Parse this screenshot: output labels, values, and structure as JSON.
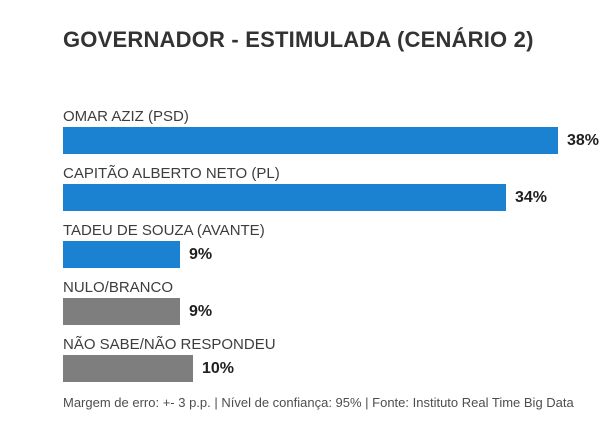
{
  "title": "GOVERNADOR - ESTIMULADA (CENÁRIO 2)",
  "footer": "Margem de erro: +- 3 p.p. | Nível de confiança: 95% | Fonte: Instituto Real Time Big Data",
  "colors": {
    "candidate_bar": "#1b82d2",
    "neutral_bar": "#7e7e7e",
    "title_text": "#333333",
    "label_text": "#3d3d3d",
    "value_text": "#1f1f1f",
    "footnote_text": "#4e4e4e",
    "background": "#ffffff"
  },
  "chart_data": {
    "type": "bar",
    "orientation": "horizontal",
    "title": "GOVERNADOR - ESTIMULADA (CENÁRIO 2)",
    "categories": [
      "OMAR AZIZ (PSD)",
      "CAPITÃO ALBERTO NETO (PL)",
      "TADEU DE SOUZA (AVANTE)",
      "NULO/BRANCO",
      "NÃO SABE/NÃO RESPONDEU"
    ],
    "values": [
      38,
      34,
      9,
      9,
      10
    ],
    "value_labels": [
      "38%",
      "34%",
      "9%",
      "9%",
      "10%"
    ],
    "bar_color_keys": [
      "candidate_bar",
      "candidate_bar",
      "candidate_bar",
      "neutral_bar",
      "neutral_bar"
    ],
    "xlim": [
      0,
      38
    ],
    "unit": "%",
    "grid": false,
    "legend": false,
    "annotation": "Margem de erro: +- 3 p.p. | Nível de confiança: 95% | Fonte: Instituto Real Time Big Data"
  }
}
